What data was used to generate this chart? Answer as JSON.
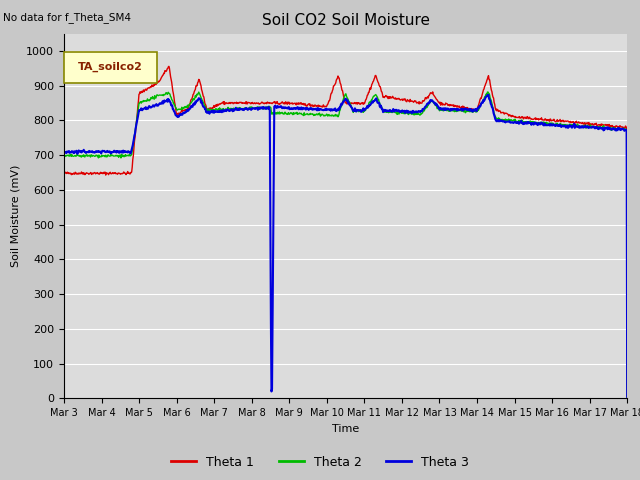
{
  "title": "Soil CO2 Soil Moisture",
  "no_data_text": "No data for f_Theta_SM4",
  "ylabel": "Soil Moisture (mV)",
  "xlabel": "Time",
  "ylim": [
    0,
    1050
  ],
  "yticks": [
    0,
    100,
    200,
    300,
    400,
    500,
    600,
    700,
    800,
    900,
    1000
  ],
  "fig_bg": "#d8d8d8",
  "ax_bg": "#dcdcdc",
  "legend_label": "TA_soilco2",
  "legend_box_color": "#ffffcc",
  "series_colors": [
    "#dd0000",
    "#00bb00",
    "#0000dd"
  ],
  "series_names": [
    "Theta 1",
    "Theta 2",
    "Theta 3"
  ],
  "tick_labels": [
    "Mar 3",
    "Mar 4",
    "Mar 5",
    "Mar 6",
    "Mar 7",
    "Mar 8",
    "Mar 9",
    "Mar 10",
    "Mar 11",
    "Mar 12",
    "Mar 13",
    "Mar 14",
    "Mar 15",
    "Mar 16",
    "Mar 17",
    "Mar 18"
  ]
}
